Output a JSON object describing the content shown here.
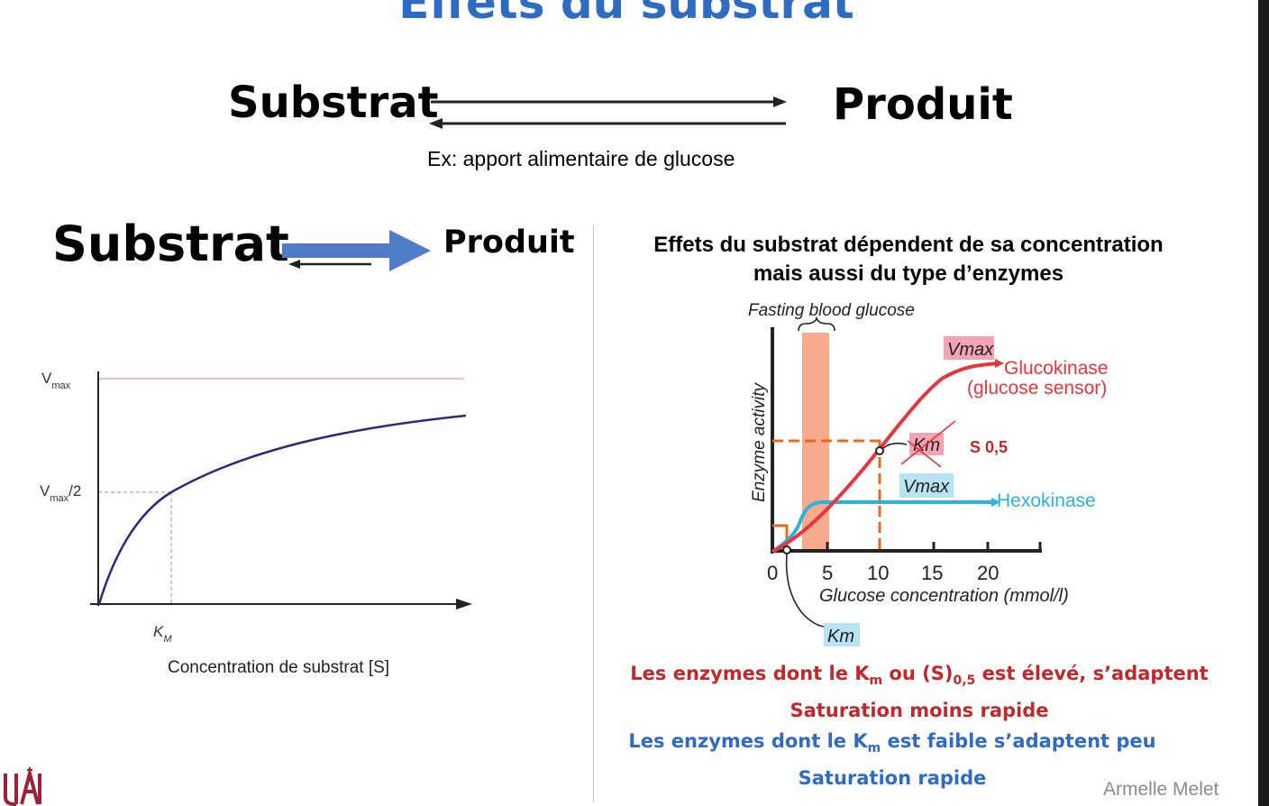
{
  "title": "Effets du substrat",
  "top_reaction": {
    "substrate": "Substrat",
    "product": "Produit",
    "example": "Ex: apport alimentaire de glucose"
  },
  "left_reaction": {
    "substrate": "Substrat",
    "product": "Produit"
  },
  "michaelis_chart": {
    "y_labels": {
      "vmax_v": "V",
      "vmax_sub": "max",
      "half_v": "V",
      "half_sub": "max",
      "half_suffix": "/2"
    },
    "x_labels": {
      "km_k": "K",
      "km_sub": "M"
    },
    "xlabel": "Concentration de substrat [S]"
  },
  "right_panel": {
    "title_line1": "Effets du substrat dépendent de sa concentration",
    "title_line2": "mais aussi du type d’enzymes"
  },
  "glucose_chart": {
    "fasting_label": "Fasting blood glucose",
    "ylabel": "Enzyme activity",
    "xlabel": "Glucose concentration (mmol/l)",
    "ticks": [
      "0",
      "5",
      "10",
      "15",
      "20"
    ],
    "vmax_gk": "Vmax",
    "vmax_hk": "Vmax",
    "km_gk": "Km",
    "km_hk": "Km",
    "s05": "S 0,5",
    "gk_name_line1": "Glucokinase",
    "gk_name_line2": "(glucose sensor)",
    "hk_name": "Hexokinase"
  },
  "notes": {
    "red_a": "Les enzymes dont le K",
    "red_sub1": "m",
    "red_b": " ou (S)",
    "red_sub2": "0,5",
    "red_c": " est élevé, s’adaptent",
    "red_line2": "Saturation moins rapide",
    "blue_a": "Les enzymes dont le K",
    "blue_sub": "m",
    "blue_b": " est faible s’adaptent peu",
    "blue_line2": "Saturation rapide"
  },
  "credit": "Armelle Melet",
  "colors": {
    "title_blue": "#2e6bc1",
    "note_red": "#c0282a",
    "glucokinase": "#e8353d",
    "hexokinase": "#2bb3dc",
    "fasting_band": "#f6ab8f",
    "km_guides": "#e36b1f",
    "mm_curve": "#2b2a78",
    "logo": "#9b2238"
  }
}
